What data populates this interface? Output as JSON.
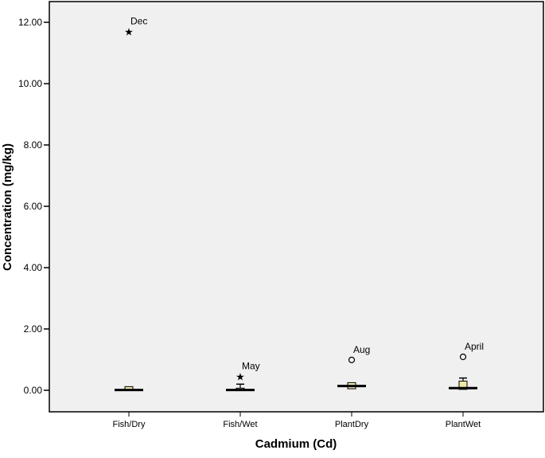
{
  "chart_data": {
    "type": "boxplot",
    "title": "",
    "xlabel": "Cadmium (Cd)",
    "ylabel": "Concentration (mg/kg)",
    "ylim": [
      -0.7,
      12.7
    ],
    "yticks": [
      "0.00",
      "2.00",
      "4.00",
      "6.00",
      "8.00",
      "10.00",
      "12.00"
    ],
    "ytick_values": [
      0,
      2,
      4,
      6,
      8,
      10,
      12
    ],
    "grid": false,
    "categories": [
      "Fish/Dry",
      "Fish/Wet",
      "PlantDry",
      "PlantWet"
    ],
    "boxes": [
      {
        "min": 0.0,
        "q1": 0.0,
        "median": 0.01,
        "q3": 0.12,
        "max": 0.12
      },
      {
        "min": 0.0,
        "q1": 0.0,
        "median": 0.01,
        "q3": 0.07,
        "max": 0.2
      },
      {
        "min": 0.05,
        "q1": 0.05,
        "median": 0.14,
        "q3": 0.25,
        "max": 0.25
      },
      {
        "min": 0.03,
        "q1": 0.03,
        "median": 0.07,
        "q3": 0.3,
        "max": 0.4
      }
    ],
    "outliers": [
      {
        "category": "Fish/Dry",
        "value": 11.7,
        "label": "Dec",
        "marker": "star"
      },
      {
        "category": "Fish/Wet",
        "value": 0.46,
        "label": "May",
        "marker": "star"
      },
      {
        "category": "PlantDry",
        "value": 0.99,
        "label": "Aug",
        "marker": "circle"
      },
      {
        "category": "PlantWet",
        "value": 1.09,
        "label": "April",
        "marker": "circle"
      }
    ],
    "colors": {
      "box_fill": "#efe7a6",
      "plot_background": "#f0f0f0"
    }
  }
}
